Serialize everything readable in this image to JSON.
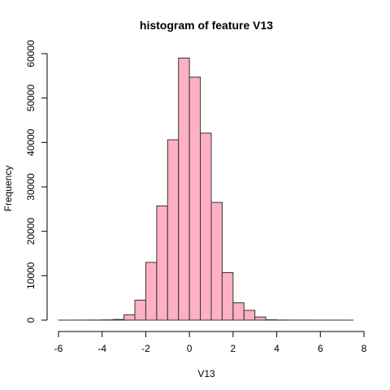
{
  "chart_data": {
    "type": "bar",
    "title": "histogram of feature V13",
    "xlabel": "V13",
    "ylabel": "Frequency",
    "xlim": [
      -6,
      8
    ],
    "ylim": [
      0,
      60000
    ],
    "x_ticks": [
      -6,
      -4,
      -2,
      0,
      2,
      4,
      6,
      8
    ],
    "y_ticks": [
      0,
      10000,
      20000,
      30000,
      40000,
      50000,
      60000
    ],
    "bin_width": 0.5,
    "bins": [
      {
        "x0": -6.0,
        "x1": -5.5,
        "count": 5
      },
      {
        "x0": -5.5,
        "x1": -5.0,
        "count": 10
      },
      {
        "x0": -5.0,
        "x1": -4.5,
        "count": 15
      },
      {
        "x0": -4.5,
        "x1": -4.0,
        "count": 25
      },
      {
        "x0": -4.0,
        "x1": -3.5,
        "count": 60
      },
      {
        "x0": -3.5,
        "x1": -3.0,
        "count": 150
      },
      {
        "x0": -3.0,
        "x1": -2.5,
        "count": 1200
      },
      {
        "x0": -2.5,
        "x1": -2.0,
        "count": 4500
      },
      {
        "x0": -2.0,
        "x1": -1.5,
        "count": 13000
      },
      {
        "x0": -1.5,
        "x1": -1.0,
        "count": 25700
      },
      {
        "x0": -1.0,
        "x1": -0.5,
        "count": 40600
      },
      {
        "x0": -0.5,
        "x1": 0.0,
        "count": 59000
      },
      {
        "x0": 0.0,
        "x1": 0.5,
        "count": 54700
      },
      {
        "x0": 0.5,
        "x1": 1.0,
        "count": 42100
      },
      {
        "x0": 1.0,
        "x1": 1.5,
        "count": 26500
      },
      {
        "x0": 1.5,
        "x1": 2.0,
        "count": 10700
      },
      {
        "x0": 2.0,
        "x1": 2.5,
        "count": 3900
      },
      {
        "x0": 2.5,
        "x1": 3.0,
        "count": 2200
      },
      {
        "x0": 3.0,
        "x1": 3.5,
        "count": 700
      },
      {
        "x0": 3.5,
        "x1": 4.0,
        "count": 80
      },
      {
        "x0": 4.0,
        "x1": 4.5,
        "count": 30
      },
      {
        "x0": 4.5,
        "x1": 5.0,
        "count": 15
      },
      {
        "x0": 5.0,
        "x1": 5.5,
        "count": 10
      },
      {
        "x0": 5.5,
        "x1": 6.0,
        "count": 8
      },
      {
        "x0": 6.0,
        "x1": 6.5,
        "count": 5
      },
      {
        "x0": 6.5,
        "x1": 7.0,
        "count": 3
      },
      {
        "x0": 7.0,
        "x1": 7.5,
        "count": 2
      }
    ],
    "bar_color": "#ffb0c4",
    "bar_border_color": "#333333",
    "grid": false,
    "legend": "none"
  }
}
